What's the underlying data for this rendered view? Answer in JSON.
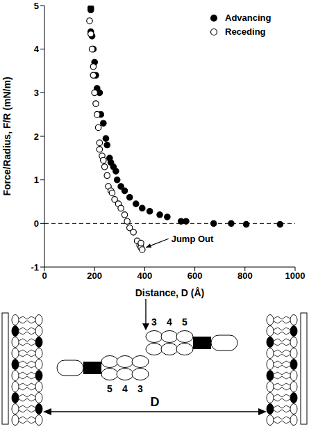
{
  "chart_data": {
    "type": "scatter",
    "x_label": "Distance, D (Å)",
    "y_label": "Force/Radius, F/R (mN/m)",
    "xlim": [
      0,
      1000
    ],
    "xticks": [
      0,
      200,
      400,
      600,
      800,
      1000
    ],
    "ylim": [
      -1,
      5
    ],
    "yticks": [
      -1,
      0,
      1,
      2,
      3,
      4,
      5
    ],
    "grid": false,
    "legend": "top-right",
    "reference_lines": [
      {
        "y": 0,
        "line_style": "dashed"
      }
    ],
    "annotations": [
      {
        "text": "Jump Out",
        "x": 495,
        "y": -0.35,
        "arrow_to": {
          "x": 405,
          "y": -0.55
        }
      }
    ],
    "series": [
      {
        "name": "Advancing",
        "color": "#000000",
        "marker": "filled_circle",
        "x": [
          185,
          185,
          185,
          190,
          195,
          200,
          205,
          210,
          220,
          225,
          235,
          245,
          250,
          260,
          265,
          275,
          285,
          290,
          305,
          320,
          340,
          365,
          390,
          420,
          460,
          490,
          545,
          565,
          675,
          745,
          805,
          940
        ],
        "values": [
          4.95,
          4.9,
          4.4,
          4.3,
          4.0,
          3.7,
          3.4,
          3.1,
          3.0,
          2.5,
          2.3,
          1.95,
          1.8,
          1.5,
          1.4,
          1.3,
          1.2,
          1.0,
          0.85,
          0.75,
          0.6,
          0.45,
          0.35,
          0.28,
          0.2,
          0.15,
          0.05,
          0.05,
          0.0,
          0.0,
          -0.02,
          -0.02
        ]
      },
      {
        "name": "Receding",
        "color": "#000000",
        "marker": "open_circle",
        "x": [
          180,
          185,
          190,
          195,
          195,
          200,
          205,
          210,
          215,
          220,
          220,
          230,
          235,
          240,
          250,
          255,
          265,
          270,
          280,
          295,
          305,
          320,
          330,
          340,
          355,
          370,
          380,
          385,
          390,
          385
        ],
        "values": [
          4.65,
          4.35,
          4.0,
          3.6,
          3.4,
          3.0,
          2.75,
          2.5,
          2.2,
          1.85,
          1.7,
          1.55,
          1.45,
          1.3,
          1.1,
          0.85,
          0.75,
          0.7,
          0.55,
          0.45,
          0.35,
          0.2,
          0.05,
          -0.1,
          -0.2,
          -0.4,
          -0.5,
          -0.55,
          -0.6,
          -0.45
        ]
      }
    ]
  },
  "diagram": {
    "left_labels": [
      5,
      4,
      3
    ],
    "right_labels": [
      3,
      4,
      5
    ],
    "distance_label": "D"
  }
}
